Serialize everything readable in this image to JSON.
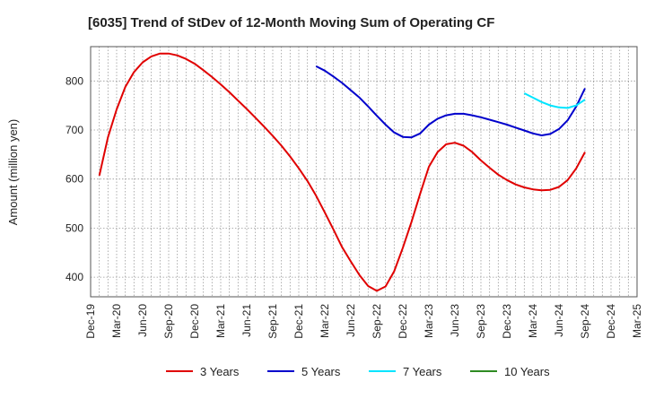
{
  "chart_data": {
    "type": "line",
    "title": "[6035]  Trend of StDev of 12-Month Moving Sum of Operating CF",
    "xlabel": "",
    "ylabel": "Amount (million yen)",
    "ylim": [
      360,
      870
    ],
    "y_ticks": [
      400,
      500,
      600,
      700,
      800
    ],
    "x_range": [
      "2019-12",
      "2025-03"
    ],
    "x_ticks": [
      "Dec-19",
      "Mar-20",
      "Jun-20",
      "Sep-20",
      "Dec-20",
      "Mar-21",
      "Jun-21",
      "Sep-21",
      "Dec-21",
      "Mar-22",
      "Jun-22",
      "Sep-22",
      "Dec-22",
      "Mar-23",
      "Jun-23",
      "Sep-23",
      "Dec-23",
      "Mar-24",
      "Jun-24",
      "Sep-24",
      "Dec-24",
      "Mar-25"
    ],
    "grid": true,
    "legend_position": "bottom",
    "series": [
      {
        "name": "3 Years",
        "color": "#e00000",
        "x": [
          "2020-01",
          "2020-02",
          "2020-03",
          "2020-04",
          "2020-05",
          "2020-06",
          "2020-07",
          "2020-08",
          "2020-09",
          "2020-10",
          "2020-11",
          "2020-12",
          "2021-01",
          "2021-02",
          "2021-03",
          "2021-04",
          "2021-05",
          "2021-06",
          "2021-07",
          "2021-08",
          "2021-09",
          "2021-10",
          "2021-11",
          "2021-12",
          "2022-01",
          "2022-02",
          "2022-03",
          "2022-04",
          "2022-05",
          "2022-06",
          "2022-07",
          "2022-08",
          "2022-09",
          "2022-10",
          "2022-11",
          "2022-12",
          "2023-01",
          "2023-02",
          "2023-03",
          "2023-04",
          "2023-05",
          "2023-06",
          "2023-07",
          "2023-08",
          "2023-09",
          "2023-10",
          "2023-11",
          "2023-12",
          "2024-01",
          "2024-02",
          "2024-03",
          "2024-04",
          "2024-05",
          "2024-06",
          "2024-07",
          "2024-08",
          "2024-09"
        ],
        "y": [
          607,
          685,
          742,
          788,
          818,
          838,
          850,
          856,
          856,
          852,
          845,
          835,
          822,
          808,
          793,
          777,
          760,
          743,
          725,
          707,
          688,
          668,
          646,
          622,
          596,
          566,
          532,
          497,
          461,
          432,
          404,
          382,
          372,
          381,
          412,
          460,
          513,
          570,
          625,
          655,
          671,
          674,
          668,
          655,
          638,
          623,
          609,
          598,
          589,
          583,
          579,
          577,
          578,
          584,
          598,
          622,
          655
        ]
      },
      {
        "name": "5 Years",
        "color": "#0000cc",
        "x": [
          "2022-02",
          "2022-03",
          "2022-04",
          "2022-05",
          "2022-06",
          "2022-07",
          "2022-08",
          "2022-09",
          "2022-10",
          "2022-11",
          "2022-12",
          "2023-01",
          "2023-02",
          "2023-03",
          "2023-04",
          "2023-05",
          "2023-06",
          "2023-07",
          "2023-08",
          "2023-09",
          "2023-10",
          "2023-11",
          "2023-12",
          "2024-01",
          "2024-02",
          "2024-03",
          "2024-04",
          "2024-05",
          "2024-06",
          "2024-07",
          "2024-08",
          "2024-09"
        ],
        "y": [
          830,
          821,
          809,
          796,
          781,
          766,
          748,
          729,
          711,
          695,
          686,
          685,
          693,
          711,
          723,
          730,
          733,
          733,
          730,
          726,
          721,
          716,
          711,
          705,
          699,
          693,
          689,
          692,
          702,
          720,
          748,
          785
        ]
      },
      {
        "name": "7 Years",
        "color": "#00e5ff",
        "x": [
          "2024-02",
          "2024-03",
          "2024-04",
          "2024-05",
          "2024-06",
          "2024-07",
          "2024-08",
          "2024-09"
        ],
        "y": [
          775,
          766,
          757,
          750,
          746,
          745,
          750,
          762
        ]
      },
      {
        "name": "10 Years",
        "color": "#2e8b22",
        "x": [],
        "y": []
      }
    ]
  }
}
